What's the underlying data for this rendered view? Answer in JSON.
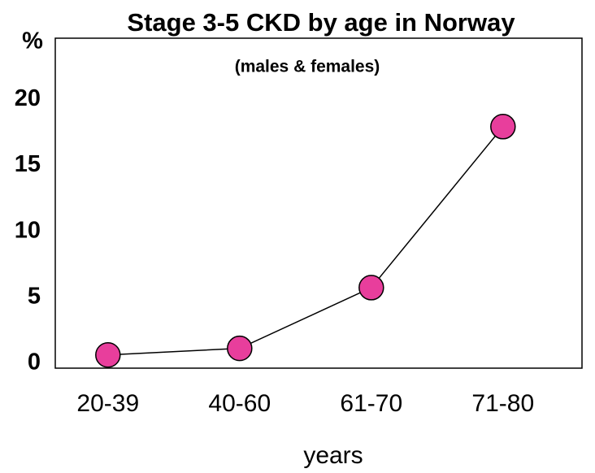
{
  "chart_data": {
    "type": "line",
    "title": "Stage 3-5 CKD by age in Norway",
    "subtitle": "(males & females)",
    "ylabel": "%",
    "xlabel": "years",
    "categories": [
      "20-39",
      "40-60",
      "61-70",
      "71-80"
    ],
    "series": [
      {
        "name": "CKD",
        "color": "#e83e9c",
        "values": [
          1.0,
          1.5,
          6.1,
          18.3
        ]
      }
    ],
    "ylim": [
      0,
      25
    ],
    "yticks": [
      0,
      5,
      10,
      15,
      20
    ],
    "grid": false
  }
}
